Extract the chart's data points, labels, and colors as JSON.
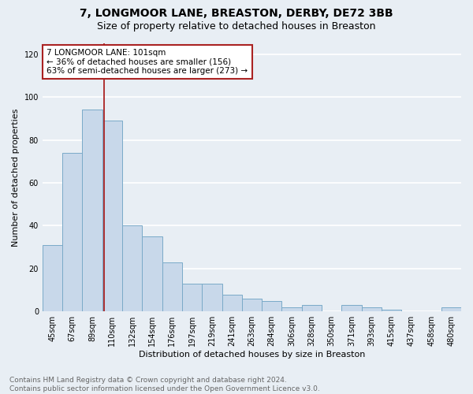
{
  "title": "7, LONGMOOR LANE, BREASTON, DERBY, DE72 3BB",
  "subtitle": "Size of property relative to detached houses in Breaston",
  "xlabel": "Distribution of detached houses by size in Breaston",
  "ylabel": "Number of detached properties",
  "categories": [
    "45sqm",
    "67sqm",
    "89sqm",
    "110sqm",
    "132sqm",
    "154sqm",
    "176sqm",
    "197sqm",
    "219sqm",
    "241sqm",
    "263sqm",
    "284sqm",
    "306sqm",
    "328sqm",
    "350sqm",
    "371sqm",
    "393sqm",
    "415sqm",
    "437sqm",
    "458sqm",
    "480sqm"
  ],
  "values": [
    31,
    74,
    94,
    89,
    40,
    35,
    23,
    13,
    13,
    8,
    6,
    5,
    2,
    3,
    0,
    3,
    2,
    1,
    0,
    0,
    2
  ],
  "bar_color": "#c8d8ea",
  "bar_edge_color": "#7aaac8",
  "marker_color": "#aa2222",
  "ylim": [
    0,
    125
  ],
  "yticks": [
    0,
    20,
    40,
    60,
    80,
    100,
    120
  ],
  "marker_label_line1": "7 LONGMOOR LANE: 101sqm",
  "marker_label_line2": "← 36% of detached houses are smaller (156)",
  "marker_label_line3": "63% of semi-detached houses are larger (273) →",
  "footer_line1": "Contains HM Land Registry data © Crown copyright and database right 2024.",
  "footer_line2": "Contains public sector information licensed under the Open Government Licence v3.0.",
  "bg_color": "#e8eef4",
  "plot_bg_color": "#e8eef4",
  "grid_color": "#ffffff",
  "title_fontsize": 10,
  "subtitle_fontsize": 9,
  "axis_label_fontsize": 8,
  "tick_fontsize": 7,
  "footer_fontsize": 6.5,
  "annotation_fontsize": 7.5
}
